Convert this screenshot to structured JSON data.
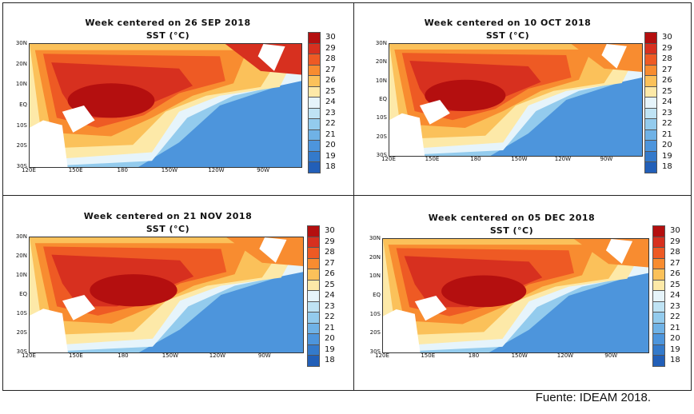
{
  "common": {
    "variable": "SST (°C)",
    "lat_labels": [
      "30N",
      "20N",
      "10N",
      "EQ",
      "10S",
      "20S",
      "30S"
    ],
    "lon_labels": [
      "120E",
      "150E",
      "180",
      "150W",
      "120W",
      "90W"
    ],
    "colorbar_values": [
      30,
      29,
      28,
      27,
      26,
      25,
      24,
      23,
      22,
      21,
      20,
      19,
      18
    ],
    "colorbar_colors": [
      "#b40f0f",
      "#d7301f",
      "#ee5a24",
      "#f88c30",
      "#fbc15a",
      "#fde9a8",
      "#e6f4fb",
      "#bfe3f4",
      "#93cbed",
      "#6fb2e6",
      "#4d95dc",
      "#347acb",
      "#225fb8"
    ]
  },
  "panels": [
    {
      "title": "Week centered on 26 SEP 2018"
    },
    {
      "title": "Week centered on 10 OCT 2018"
    },
    {
      "title": "Week centered on 21 NOV 2018"
    },
    {
      "title": "Week centered on 05 DEC 2018"
    }
  ],
  "source": "Fuente: IDEAM 2018."
}
